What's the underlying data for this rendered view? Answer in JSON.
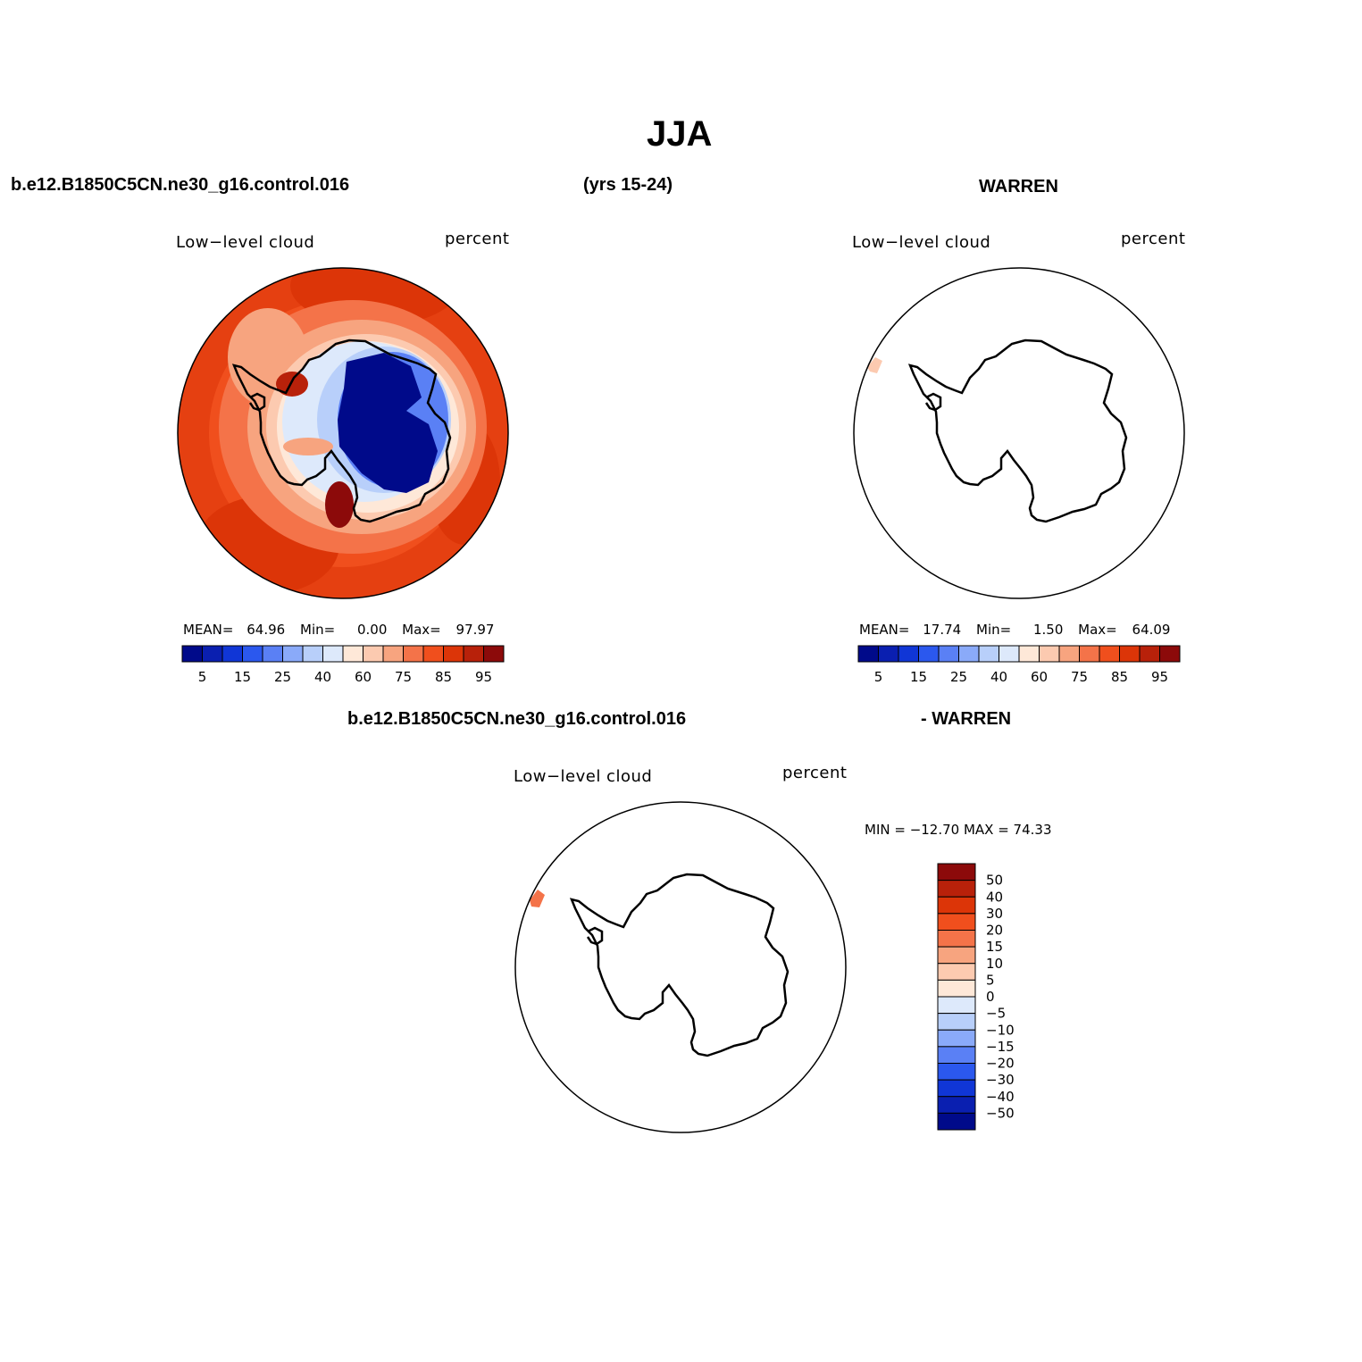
{
  "title": "JJA",
  "header": {
    "case_name": "b.e12.B1850C5CN.ne30_g16.control.016",
    "years": "(yrs 15-24)",
    "obs_name": "WARREN"
  },
  "panels": {
    "model": {
      "variable": "Low−level cloud",
      "units": "percent",
      "mean_label": "MEAN=",
      "mean": "64.96",
      "min_label": "Min=",
      "min": "0.00",
      "max_label": "Max=",
      "max": "97.97"
    },
    "obs": {
      "variable": "Low−level cloud",
      "units": "percent",
      "mean_label": "MEAN=",
      "mean": "17.74",
      "min_label": "Min=",
      "min": "1.50",
      "max_label": "Max=",
      "max": "64.09"
    },
    "diff": {
      "title_case": "b.e12.B1850C5CN.ne30_g16.control.016",
      "title_obs": "- WARREN",
      "variable": "Low−level cloud",
      "units": "percent",
      "minmax": "MIN = −12.70 MAX =   74.33"
    }
  },
  "colorbar_abs": {
    "colors": [
      "#000a8a",
      "#0a1fb0",
      "#1036d6",
      "#2b58ee",
      "#5a80f5",
      "#8aaaf9",
      "#b8cffa",
      "#dde9fb",
      "#fee8d8",
      "#fccab0",
      "#f7a47f",
      "#f47349",
      "#f04f1d",
      "#dc3508",
      "#b8210a",
      "#8c0a0a"
    ],
    "tick_labels": [
      "5",
      "15",
      "25",
      "40",
      "60",
      "75",
      "85",
      "95"
    ]
  },
  "colorbar_diff": {
    "colors_top_to_bottom": [
      "#8c0a0a",
      "#b8210a",
      "#dc3508",
      "#f04f1d",
      "#f47349",
      "#f7a47f",
      "#fccab0",
      "#fee8d8",
      "#dde9fb",
      "#b8cffa",
      "#8aaaf9",
      "#5a80f5",
      "#2b58ee",
      "#1036d6",
      "#0a1fb0",
      "#000a8a"
    ],
    "tick_labels": [
      "50",
      "40",
      "30",
      "20",
      "15",
      "10",
      "5",
      "0",
      "−5",
      "−10",
      "−15",
      "−20",
      "−30",
      "−40",
      "−50"
    ]
  },
  "map_colors": {
    "ocean_high": "#f04f1d",
    "ocean_higher": "#dc3508",
    "interior_low": "#000a8a"
  }
}
